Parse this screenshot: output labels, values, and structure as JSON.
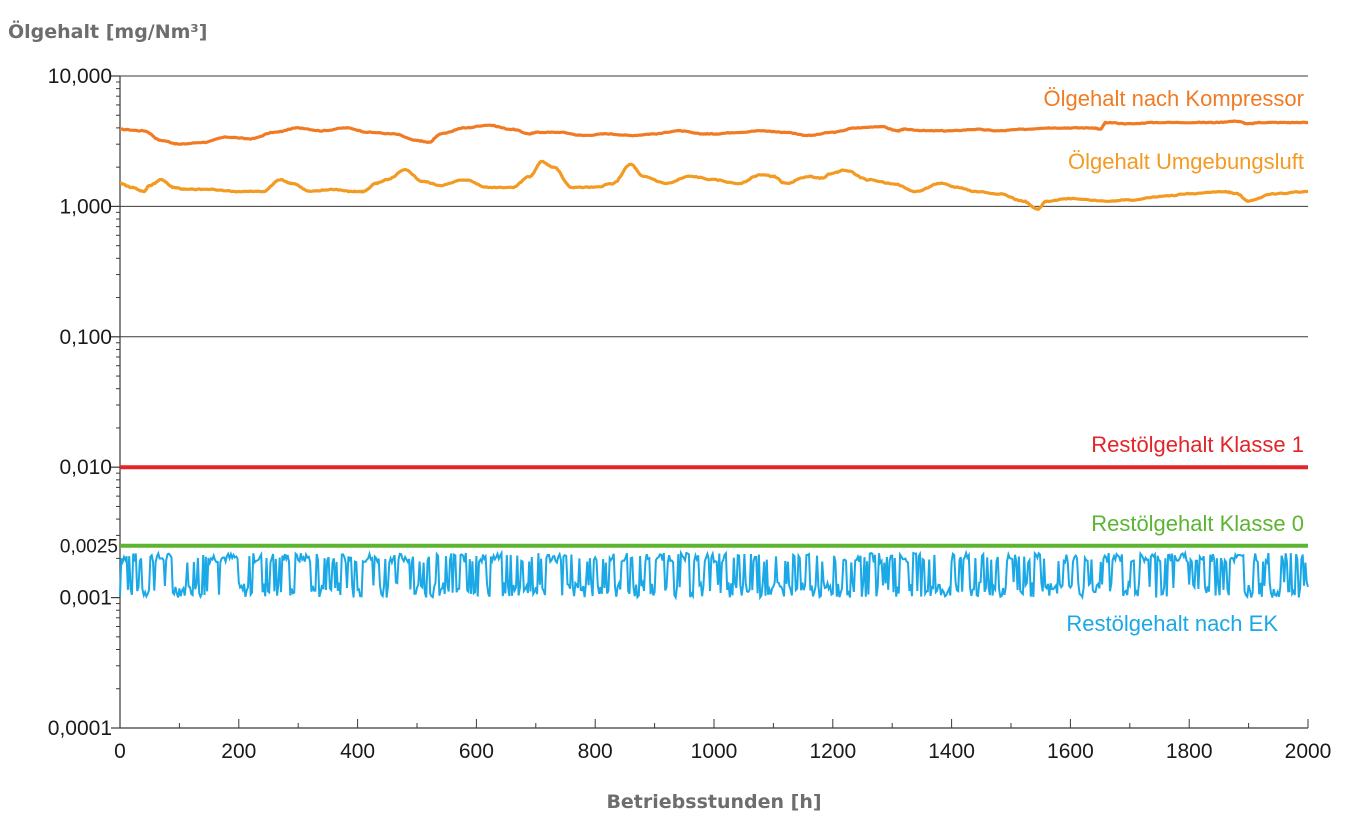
{
  "chart_data": {
    "type": "line",
    "ylabel": "Ölgehalt [mg/Nm³]",
    "xlabel": "Betriebsstunden [h]",
    "x_scale": "linear",
    "y_scale": "log",
    "xlim": [
      0,
      2000
    ],
    "ylim": [
      0.0001,
      10
    ],
    "x_ticks": [
      "0",
      "200",
      "400",
      "600",
      "800",
      "1000",
      "1200",
      "1400",
      "1600",
      "1800",
      "2000"
    ],
    "y_ticks": [
      {
        "value": 10,
        "label": "10,000"
      },
      {
        "value": 1,
        "label": "1,000"
      },
      {
        "value": 0.1,
        "label": "0,100"
      },
      {
        "value": 0.01,
        "label": "0,010"
      },
      {
        "value": 0.0025,
        "label": "0,0025",
        "color": "#5cb531"
      },
      {
        "value": 0.001,
        "label": "0,001"
      },
      {
        "value": 0.0001,
        "label": "0,0001"
      }
    ],
    "grid": true,
    "series": [
      {
        "name": "Ölgehalt nach Kompressor",
        "color": "#f07b24",
        "x": [
          0,
          40,
          70,
          100,
          140,
          180,
          220,
          260,
          300,
          340,
          380,
          420,
          460,
          500,
          520,
          540,
          580,
          620,
          660,
          690,
          700,
          740,
          780,
          820,
          860,
          900,
          940,
          980,
          1000,
          1040,
          1080,
          1120,
          1160,
          1200,
          1240,
          1280,
          1310,
          1320,
          1360,
          1400,
          1440,
          1480,
          1520,
          1560,
          1600,
          1640,
          1650,
          1660,
          1700,
          1740,
          1800,
          1840,
          1880,
          1900,
          1920,
          1960,
          2000
        ],
        "y": [
          3.9,
          3.8,
          3.2,
          3.0,
          3.1,
          3.4,
          3.3,
          3.7,
          4.0,
          3.8,
          4.0,
          3.7,
          3.6,
          3.2,
          3.1,
          3.6,
          4.0,
          4.2,
          3.9,
          3.6,
          3.7,
          3.7,
          3.5,
          3.6,
          3.5,
          3.6,
          3.8,
          3.6,
          3.6,
          3.7,
          3.8,
          3.7,
          3.5,
          3.7,
          4.0,
          4.1,
          3.8,
          3.9,
          3.8,
          3.8,
          3.9,
          3.8,
          3.9,
          4.0,
          4.0,
          4.0,
          3.9,
          4.4,
          4.3,
          4.4,
          4.4,
          4.4,
          4.5,
          4.3,
          4.4,
          4.4,
          4.4
        ]
      },
      {
        "name": "Ölgehalt Umgebungsluft",
        "color": "#f39a22",
        "x": [
          0,
          20,
          40,
          50,
          70,
          90,
          110,
          150,
          200,
          240,
          270,
          290,
          320,
          360,
          390,
          410,
          430,
          450,
          480,
          510,
          540,
          580,
          620,
          660,
          690,
          710,
          730,
          760,
          800,
          830,
          860,
          880,
          920,
          960,
          1000,
          1040,
          1080,
          1100,
          1120,
          1160,
          1180,
          1200,
          1220,
          1260,
          1300,
          1340,
          1380,
          1410,
          1440,
          1480,
          1520,
          1545,
          1560,
          1600,
          1660,
          1700,
          1760,
          1800,
          1860,
          1880,
          1900,
          1940,
          2000
        ],
        "y": [
          1.5,
          1.4,
          1.3,
          1.45,
          1.6,
          1.4,
          1.35,
          1.35,
          1.3,
          1.3,
          1.6,
          1.5,
          1.3,
          1.35,
          1.3,
          1.3,
          1.5,
          1.6,
          1.9,
          1.55,
          1.45,
          1.6,
          1.4,
          1.4,
          1.7,
          2.2,
          2.0,
          1.4,
          1.4,
          1.5,
          2.1,
          1.7,
          1.5,
          1.7,
          1.6,
          1.5,
          1.75,
          1.7,
          1.5,
          1.7,
          1.65,
          1.8,
          1.9,
          1.6,
          1.5,
          1.3,
          1.5,
          1.4,
          1.3,
          1.25,
          1.1,
          0.95,
          1.1,
          1.15,
          1.1,
          1.12,
          1.2,
          1.25,
          1.3,
          1.25,
          1.1,
          1.25,
          1.3
        ]
      },
      {
        "name": "Restölgehalt Klasse 1",
        "color": "#e32428",
        "x": [
          0,
          2000
        ],
        "y": [
          0.01,
          0.01
        ]
      },
      {
        "name": "Restölgehalt Klasse 0",
        "color": "#5cb531",
        "x": [
          0,
          2000
        ],
        "y": [
          0.0025,
          0.0025
        ]
      },
      {
        "name": "Restölgehalt nach EK",
        "color": "#1aa8e6",
        "x_start": 0,
        "x_end": 2000,
        "y_min": 0.001,
        "y_max": 0.0022
      }
    ]
  }
}
